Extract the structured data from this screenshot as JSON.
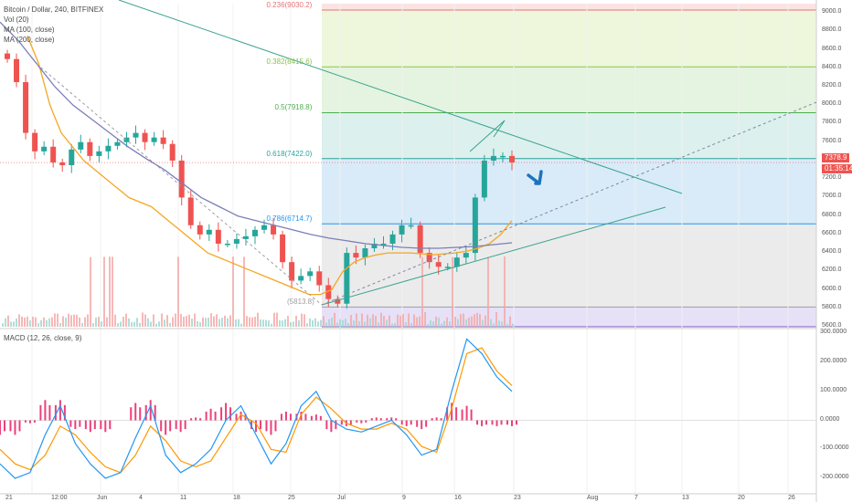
{
  "header": {
    "symbol": "Bitcoin / Dollar, 240, BITFINEX",
    "indicators": [
      "Vol (20)",
      "MA (100, close)",
      "MA (200, close)"
    ]
  },
  "macd": {
    "label": "MACD (12, 26, close, 9)"
  },
  "fib_levels": [
    {
      "label": "0.236(9030.2)",
      "value": 9030.2,
      "color": "#e57373",
      "fill": "#fbe3e3"
    },
    {
      "label": "0.382(8415.6)",
      "value": 8415.6,
      "color": "#8bc34a",
      "fill": "#eef7dc"
    },
    {
      "label": "0.5(7918.8)",
      "value": 7918.8,
      "color": "#4caf50",
      "fill": "#e4f4e0"
    },
    {
      "label": "0.618(7422.0)",
      "value": 7422.0,
      "color": "#26a69a",
      "fill": "#dcf0ee"
    },
    {
      "label": "0.786(6714.7)",
      "value": 6714.7,
      "color": "#2196f3",
      "fill": "#d9ebf8"
    },
    {
      "label": "(5813.8)",
      "value": 5813.8,
      "color": "#9e9e9e",
      "fill": "#ebebeb"
    },
    {
      "label": "",
      "value": 5600,
      "color": "#7e57c2",
      "fill": "#e6e1f7"
    }
  ],
  "price_axis": [
    "9000.0",
    "8800.0",
    "8600.0",
    "8400.0",
    "8200.0",
    "8000.0",
    "7800.0",
    "7600.0",
    "7200.0",
    "7000.0",
    "6800.0",
    "6600.0",
    "6400.0",
    "6200.0",
    "6000.0",
    "5800.0",
    "5600.0"
  ],
  "current_price": {
    "value": "7378.9",
    "countdown": "01:35:14",
    "color": "#ef5350"
  },
  "macd_axis": [
    "300.0000",
    "200.0000",
    "100.0000",
    "0.0000",
    "-100.0000",
    "-200.0000"
  ],
  "time_axis": [
    "21",
    "12:00",
    "Jun",
    "4",
    "11",
    "18",
    "25",
    "Jul",
    "9",
    "16",
    "23",
    "Aug",
    "7",
    "13",
    "20",
    "26"
  ],
  "colors": {
    "up": "#26a69a",
    "down": "#ef5350",
    "ma100": "#f5a623",
    "ma200": "#7b7fb8",
    "trend": "#3aa38f",
    "macd": "#2196f3",
    "signal": "#ff9800",
    "hist": "#e91e63",
    "arrow": "#1e73be"
  },
  "icons": {
    "forecast_arrow": "arrow-down-right-icon"
  },
  "chart_data": {
    "type": "candlestick",
    "title": "Bitcoin / Dollar, 240, BITFINEX",
    "ylim": [
      5600,
      9100
    ],
    "x_labels": [
      "21",
      "12:00",
      "Jun",
      "4",
      "11",
      "18",
      "25",
      "Jul",
      "9",
      "16",
      "23",
      "Aug",
      "7",
      "13",
      "20",
      "26"
    ],
    "close": [
      8500,
      8250,
      7700,
      7500,
      7550,
      7380,
      7350,
      7520,
      7600,
      7450,
      7500,
      7560,
      7600,
      7650,
      7700,
      7600,
      7650,
      7580,
      7400,
      7000,
      6700,
      6600,
      6650,
      6500,
      6500,
      6550,
      6580,
      6650,
      6700,
      6600,
      6300,
      6100,
      6150,
      6200,
      6050,
      5900,
      5850,
      6400,
      6350,
      6450,
      6500,
      6500,
      6600,
      6700,
      6700,
      6400,
      6300,
      6250,
      6250,
      6350,
      6400,
      7000,
      7400,
      7450,
      7450,
      7380
    ],
    "ma100": [
      8750,
      8450,
      8000,
      7700,
      7550,
      7400,
      7300,
      7200,
      7100,
      7000,
      6950,
      6900,
      6800,
      6700,
      6600,
      6500,
      6400,
      6350,
      6300,
      6250,
      6200,
      6150,
      6100,
      6050,
      6000,
      5950,
      5950,
      6000,
      6200,
      6300,
      6350,
      6380,
      6400,
      6400,
      6400,
      6390,
      6380,
      6390,
      6400,
      6420,
      6450,
      6500,
      6600,
      6750
    ],
    "ma200": [
      8900,
      8700,
      8450,
      8200,
      8000,
      7850,
      7700,
      7550,
      7420,
      7300,
      7150,
      7000,
      6900,
      6800,
      6750,
      6700,
      6650,
      6600,
      6560,
      6530,
      6500,
      6480,
      6460,
      6450,
      6450,
      6460,
      6470,
      6490,
      6510
    ],
    "macd_series": {
      "macd": [
        -150,
        -200,
        -180,
        -50,
        50,
        -80,
        -150,
        -200,
        -180,
        -60,
        50,
        -120,
        -180,
        -150,
        -100,
        0,
        50,
        -50,
        -150,
        -80,
        50,
        100,
        0,
        -30,
        -40,
        -20,
        0,
        -50,
        -120,
        -100,
        100,
        280,
        230,
        150,
        100
      ],
      "signal": [
        -100,
        -150,
        -170,
        -120,
        -20,
        -50,
        -110,
        -160,
        -180,
        -120,
        -20,
        -70,
        -140,
        -160,
        -140,
        -60,
        20,
        -10,
        -100,
        -110,
        20,
        80,
        40,
        -10,
        -30,
        -30,
        -10,
        -30,
        -90,
        -110,
        40,
        230,
        250,
        170,
        120
      ]
    },
    "annotations": [
      "0.236(9030.2)",
      "0.382(8415.6)",
      "0.5(7918.8)",
      "0.618(7422.0)",
      "0.786(6714.7)",
      "(5813.8)"
    ]
  }
}
